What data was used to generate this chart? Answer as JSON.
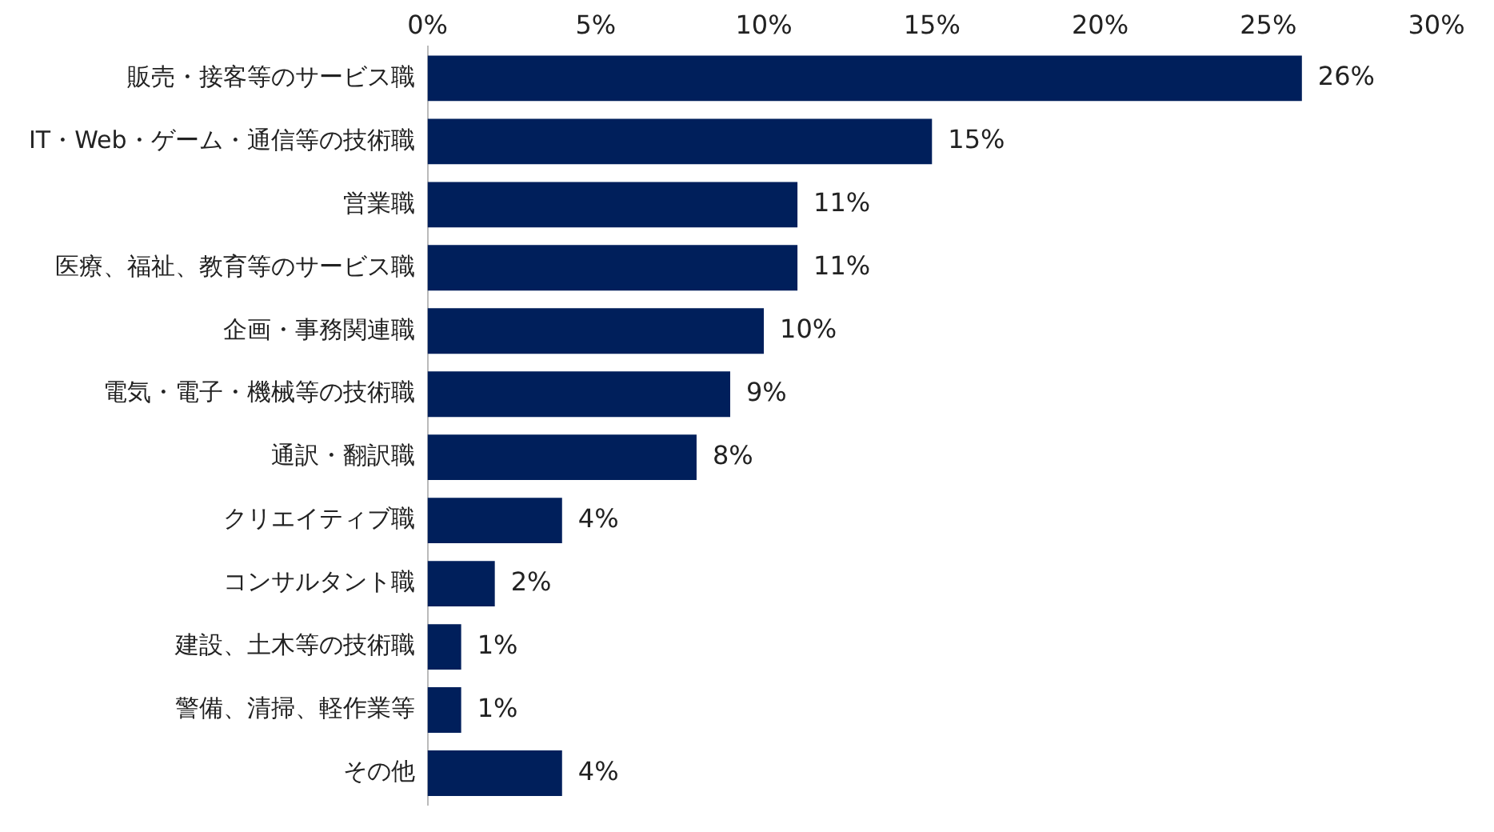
{
  "chart_data": {
    "type": "bar",
    "orientation": "horizontal",
    "categories": [
      "販売・接客等のサービス職",
      "IT・Web・ゲーム・通信等の技術職",
      "営業職",
      "医療、福祉、教育等のサービス職",
      "企画・事務関連職",
      "電気・電子・機械等の技術職",
      "通訳・翻訳職",
      "クリエイティブ職",
      "コンサルタント職",
      "建設、土木等の技術職",
      "警備、清掃、軽作業等",
      "その他"
    ],
    "values": [
      26,
      15,
      11,
      11,
      10,
      9,
      8,
      4,
      2,
      1,
      1,
      4
    ],
    "value_labels": [
      "26%",
      "15%",
      "11%",
      "11%",
      "10%",
      "9%",
      "8%",
      "4%",
      "2%",
      "1%",
      "1%",
      "4%"
    ],
    "color": "#001f5b",
    "xlim": [
      0,
      30
    ],
    "xticks": [
      {
        "value": 0,
        "label": "0%"
      },
      {
        "value": 5,
        "label": "5%"
      },
      {
        "value": 10,
        "label": "10%"
      },
      {
        "value": 15,
        "label": "15%"
      },
      {
        "value": 20,
        "label": "20%"
      },
      {
        "value": 25,
        "label": "25%"
      },
      {
        "value": 30,
        "label": "30%"
      }
    ],
    "grid": false,
    "legend": false
  }
}
